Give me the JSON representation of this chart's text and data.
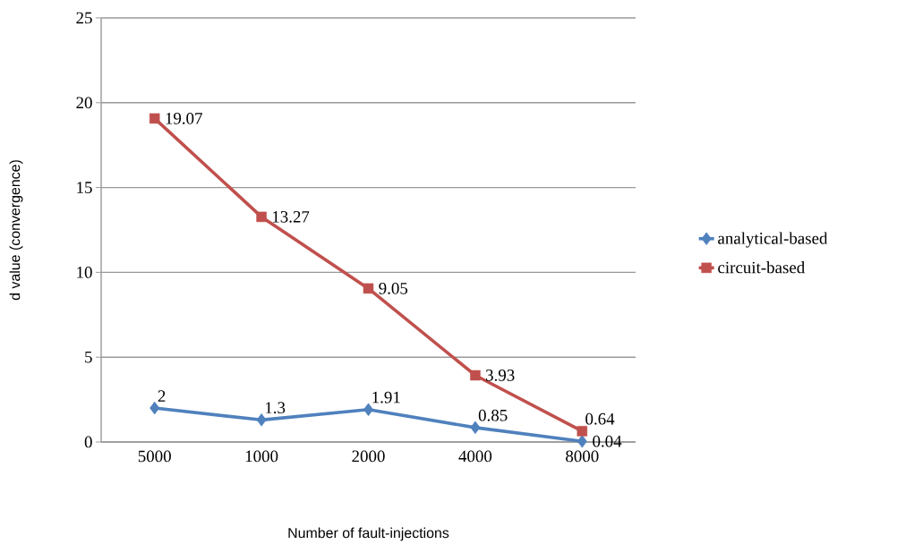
{
  "chart_data": {
    "type": "line",
    "xlabel": "Number of fault-injections",
    "ylabel": "d value (convergence)",
    "categories": [
      "5000",
      "1000",
      "2000",
      "4000",
      "8000"
    ],
    "series": [
      {
        "name": "analytical-based",
        "color": "#4f81bd",
        "marker": "diamond",
        "values": [
          2,
          1.3,
          1.91,
          0.85,
          0.04
        ]
      },
      {
        "name": "circuit-based",
        "color": "#c0504d",
        "marker": "square",
        "values": [
          19.07,
          13.27,
          9.05,
          3.93,
          0.64
        ]
      }
    ],
    "ylim": [
      0,
      25
    ],
    "yticks": [
      0,
      5,
      10,
      15,
      20,
      25
    ],
    "grid": "y",
    "legend": "right",
    "data_labels": true
  }
}
